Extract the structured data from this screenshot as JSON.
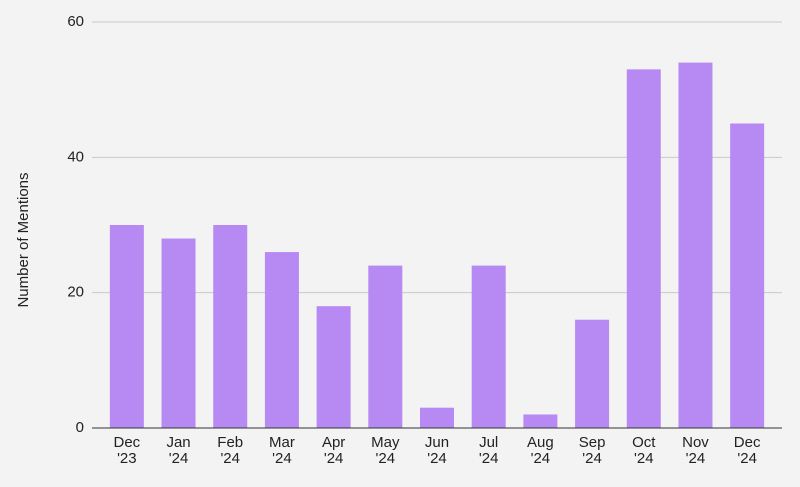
{
  "chart_data": {
    "type": "bar",
    "y_label": "Number of Mentions",
    "categories": [
      "Dec '23",
      "Jan '24",
      "Feb '24",
      "Mar '24",
      "Apr '24",
      "May '24",
      "Jun '24",
      "Jul '24",
      "Aug '24",
      "Sep '24",
      "Oct '24",
      "Nov '24",
      "Dec '24"
    ],
    "values": [
      30,
      28,
      30,
      26,
      18,
      24,
      3,
      24,
      2,
      16,
      53,
      54,
      45
    ],
    "color": "#b68af2",
    "ylim": [
      0,
      60
    ],
    "yticks": [
      0,
      20,
      40,
      60
    ],
    "grid": true
  }
}
